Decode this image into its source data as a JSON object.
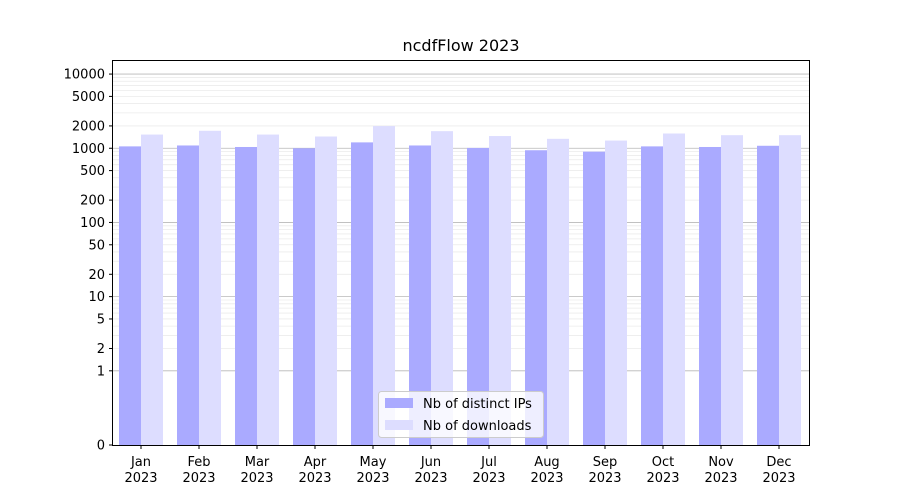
{
  "chart_data": {
    "type": "bar",
    "title": "ncdfFlow 2023",
    "xlabel": "",
    "ylabel": "",
    "scale": "symlog",
    "ylim": [
      0,
      15000
    ],
    "grid": true,
    "legend_position": "lower-center",
    "categories": [
      [
        "Jan",
        "2023"
      ],
      [
        "Feb",
        "2023"
      ],
      [
        "Mar",
        "2023"
      ],
      [
        "Apr",
        "2023"
      ],
      [
        "May",
        "2023"
      ],
      [
        "Jun",
        "2023"
      ],
      [
        "Jul",
        "2023"
      ],
      [
        "Aug",
        "2023"
      ],
      [
        "Sep",
        "2023"
      ],
      [
        "Oct",
        "2023"
      ],
      [
        "Nov",
        "2023"
      ],
      [
        "Dec",
        "2023"
      ]
    ],
    "y_ticks": [
      0,
      1,
      2,
      5,
      10,
      20,
      50,
      100,
      200,
      500,
      1000,
      2000,
      5000,
      10000
    ],
    "series": [
      {
        "name": "Nb of distinct IPs",
        "color": "#aaaaff",
        "values": [
          1060,
          1090,
          1040,
          1000,
          1200,
          1090,
          1010,
          940,
          900,
          1060,
          1040,
          1080
        ]
      },
      {
        "name": "Nb of downloads",
        "color": "#ddddff",
        "values": [
          1530,
          1720,
          1530,
          1440,
          1990,
          1700,
          1460,
          1340,
          1270,
          1580,
          1500,
          1500
        ]
      }
    ]
  }
}
